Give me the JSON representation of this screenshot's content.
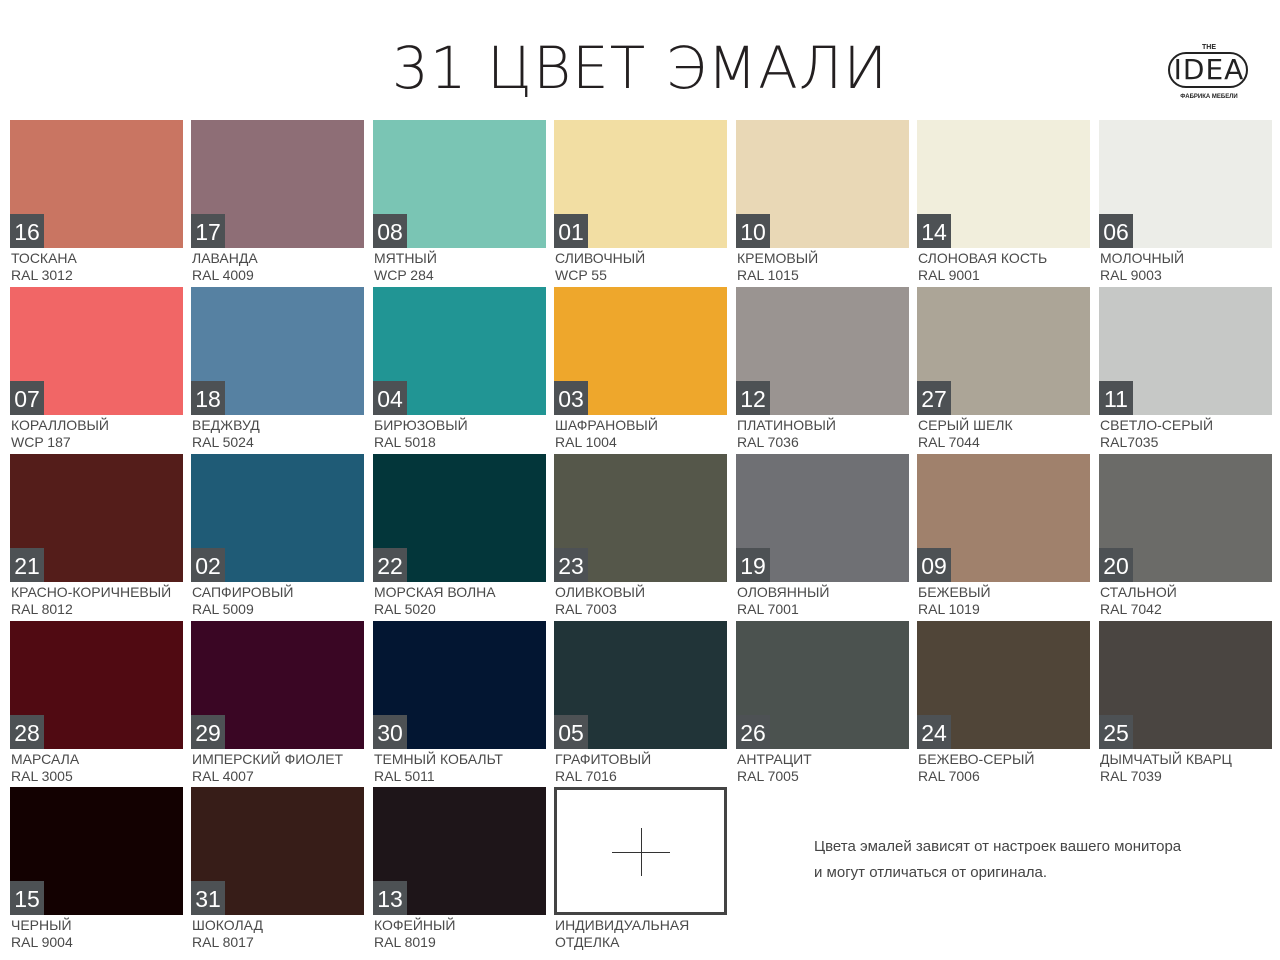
{
  "title": "31 ЦВЕТ ЭМАЛИ",
  "logo": {
    "the": "THE",
    "word": "IDEA",
    "sub": "ФАБРИКА МЕБЕЛИ"
  },
  "swatches": [
    {
      "num": "16",
      "name": "ТОСКАНА",
      "code": "RAL 3012",
      "color": "#c97562"
    },
    {
      "num": "17",
      "name": "ЛАВАНДА",
      "code": "RAL 4009",
      "color": "#8e6e76"
    },
    {
      "num": "08",
      "name": "МЯТНЫЙ",
      "code": "WCP 284",
      "color": "#7ac5b4"
    },
    {
      "num": "01",
      "name": "СЛИВОЧНЫЙ",
      "code": "WCP 55",
      "color": "#f2dea3"
    },
    {
      "num": "10",
      "name": "КРЕМОВЫЙ",
      "code": "RAL 1015",
      "color": "#e9d8b6"
    },
    {
      "num": "14",
      "name": "СЛОНОВАЯ КОСТЬ",
      "code": "RAL 9001",
      "color": "#f1eedc"
    },
    {
      "num": "06",
      "name": "МОЛОЧНЫЙ",
      "code": "RAL 9003",
      "color": "#ecede8"
    },
    {
      "num": "07",
      "name": "КОРАЛЛОВЫЙ",
      "code": "WCP 187",
      "color": "#f16666"
    },
    {
      "num": "18",
      "name": "ВЕДЖВУД",
      "code": "RAL 5024",
      "color": "#5681a2"
    },
    {
      "num": "04",
      "name": "БИРЮЗОВЫЙ",
      "code": "RAL 5018",
      "color": "#219594"
    },
    {
      "num": "03",
      "name": "ШАФРАНОВЫЙ",
      "code": "RAL 1004",
      "color": "#eea72c"
    },
    {
      "num": "12",
      "name": "ПЛАТИНОВЫЙ",
      "code": "RAL 7036",
      "color": "#9a9491"
    },
    {
      "num": "27",
      "name": "СЕРЫЙ ШЕЛК",
      "code": "RAL 7044",
      "color": "#aca597"
    },
    {
      "num": "11",
      "name": "СВЕТЛО-СЕРЫЙ",
      "code": "RAL7035",
      "color": "#c6c8c6"
    },
    {
      "num": "21",
      "name": "КРАСНО-КОРИЧНЕВЫЙ",
      "code": "RAL 8012",
      "color": "#541d1a"
    },
    {
      "num": "02",
      "name": "САПФИРОВЫЙ",
      "code": "RAL 5009",
      "color": "#1f5b76"
    },
    {
      "num": "22",
      "name": "МОРСКАЯ ВОЛНА",
      "code": "RAL 5020",
      "color": "#03363a"
    },
    {
      "num": "23",
      "name": "ОЛИВКОВЫЙ",
      "code": "RAL 7003",
      "color": "#55574a"
    },
    {
      "num": "19",
      "name": "ОЛОВЯННЫЙ",
      "code": "RAL 7001",
      "color": "#6f7074"
    },
    {
      "num": "09",
      "name": "БЕЖЕВЫЙ",
      "code": "RAL 1019",
      "color": "#a0816c"
    },
    {
      "num": "20",
      "name": "СТАЛЬНОЙ",
      "code": "RAL 7042",
      "color": "#6b6b68"
    },
    {
      "num": "28",
      "name": "МАРСАЛА",
      "code": "RAL 3005",
      "color": "#500a12"
    },
    {
      "num": "29",
      "name": "ИМПЕРСКИЙ ФИОЛЕТ",
      "code": "RAL 4007",
      "color": "#3a0624"
    },
    {
      "num": "30",
      "name": "ТЕМНЫЙ КОБАЛЬТ",
      "code": "RAL 5011",
      "color": "#031632"
    },
    {
      "num": "05",
      "name": "ГРАФИТОВЫЙ",
      "code": "RAL 7016",
      "color": "#213438"
    },
    {
      "num": "26",
      "name": "АНТРАЦИТ",
      "code": "RAL 7005",
      "color": "#4b524f"
    },
    {
      "num": "24",
      "name": "БЕЖЕВО-СЕРЫЙ",
      "code": "RAL 7006",
      "color": "#504538"
    },
    {
      "num": "25",
      "name": "ДЫМЧАТЫЙ КВАРЦ",
      "code": "RAL 7039",
      "color": "#4a4541"
    },
    {
      "num": "15",
      "name": "ЧЕРНЫЙ",
      "code": "RAL 9004",
      "color": "#130101"
    },
    {
      "num": "31",
      "name": "ШОКОЛАД",
      "code": "RAL 8017",
      "color": "#371d18"
    },
    {
      "num": "13",
      "name": "КОФЕЙНЫЙ",
      "code": "RAL 8019",
      "color": "#1e1519"
    }
  ],
  "custom": {
    "line1": "ИНДИВИДУАЛЬНАЯ",
    "line2": "ОТДЕЛКА"
  },
  "note": {
    "line1": "Цвета эмалей зависят от настроек  вашего монитора",
    "line2": "и могут отличаться  от оригинала."
  }
}
